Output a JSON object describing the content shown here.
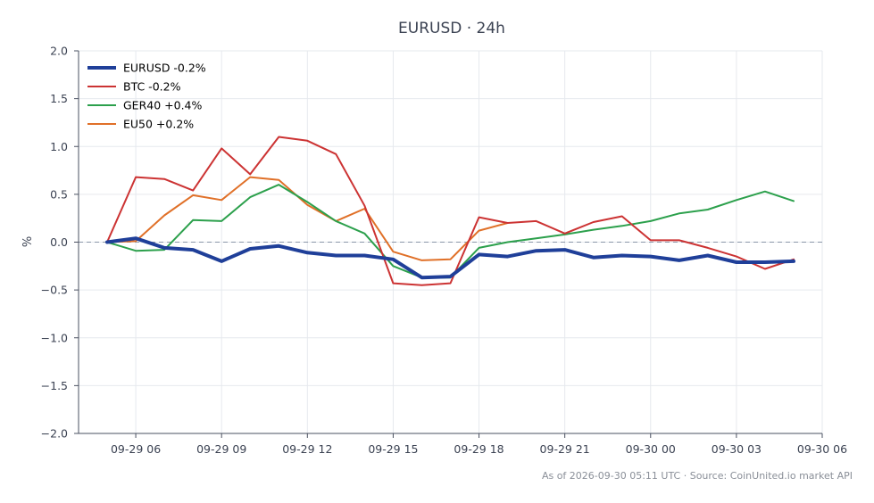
{
  "chart_data": {
    "type": "line",
    "title": "EURUSD · 24h",
    "xlabel": "",
    "ylabel": "%",
    "ylim": [
      -2.0,
      2.0
    ],
    "xlim": [
      "2026-09-29 04:00",
      "2026-09-30 06:00"
    ],
    "x_ticks": [
      "09-29 06",
      "09-29 09",
      "09-29 12",
      "09-29 15",
      "09-29 18",
      "09-29 21",
      "09-30 00",
      "09-30 03",
      "09-30 06"
    ],
    "y_ticks": [
      "2.0",
      "1.5",
      "1.0",
      "0.5",
      "0.0",
      "−0.5",
      "−1.0",
      "−1.5",
      "−2.0"
    ],
    "grid": true,
    "legend_position": "top-left",
    "zero_line": true,
    "x": [
      "2026-09-29 05:00",
      "2026-09-29 06:00",
      "2026-09-29 07:00",
      "2026-09-29 08:00",
      "2026-09-29 09:00",
      "2026-09-29 10:00",
      "2026-09-29 11:00",
      "2026-09-29 12:00",
      "2026-09-29 13:00",
      "2026-09-29 14:00",
      "2026-09-29 15:00",
      "2026-09-29 16:00",
      "2026-09-29 17:00",
      "2026-09-29 18:00",
      "2026-09-29 19:00",
      "2026-09-29 20:00",
      "2026-09-29 21:00",
      "2026-09-29 22:00",
      "2026-09-29 23:00",
      "2026-09-30 00:00",
      "2026-09-30 01:00",
      "2026-09-30 02:00",
      "2026-09-30 03:00",
      "2026-09-30 04:00",
      "2026-09-30 05:00"
    ],
    "series": [
      {
        "name": "EURUSD -0.2%",
        "color": "#1f3f99",
        "width": 4,
        "values": [
          0.0,
          0.04,
          -0.06,
          -0.08,
          -0.2,
          -0.07,
          -0.04,
          -0.11,
          -0.14,
          -0.14,
          -0.18,
          -0.37,
          -0.36,
          -0.13,
          -0.15,
          -0.09,
          -0.08,
          -0.16,
          -0.14,
          -0.15,
          -0.19,
          -0.14,
          -0.21,
          -0.21,
          -0.2
        ]
      },
      {
        "name": "BTC -0.2%",
        "color": "#cc3333",
        "width": 2,
        "values": [
          0.0,
          0.68,
          0.66,
          0.54,
          0.98,
          0.71,
          1.1,
          1.06,
          0.92,
          0.38,
          -0.43,
          -0.45,
          -0.43,
          0.26,
          0.2,
          0.22,
          0.09,
          0.21,
          0.27,
          0.02,
          0.02,
          -0.06,
          -0.15,
          -0.28,
          -0.18
        ]
      },
      {
        "name": "GER40 +0.4%",
        "color": "#2ca04c",
        "width": 2,
        "values": [
          0.0,
          -0.09,
          -0.08,
          0.23,
          0.22,
          0.47,
          0.6,
          0.42,
          0.22,
          0.09,
          -0.25,
          -0.37,
          -0.37,
          -0.06,
          0.0,
          0.04,
          0.08,
          0.13,
          0.17,
          0.22,
          0.3,
          0.34,
          0.44,
          0.53,
          0.43
        ]
      },
      {
        "name": "EU50 +0.2%",
        "color": "#e07028",
        "width": 2,
        "values": [
          0.0,
          0.01,
          0.28,
          0.49,
          0.44,
          0.68,
          0.65,
          0.39,
          0.22,
          0.35,
          -0.1,
          -0.19,
          -0.18,
          0.12,
          0.2,
          null,
          null,
          null,
          null,
          null,
          null,
          null,
          null,
          null,
          null
        ]
      }
    ]
  },
  "footer": "As of 2026-09-30 05:11 UTC · Source: CoinUnited.io market API"
}
